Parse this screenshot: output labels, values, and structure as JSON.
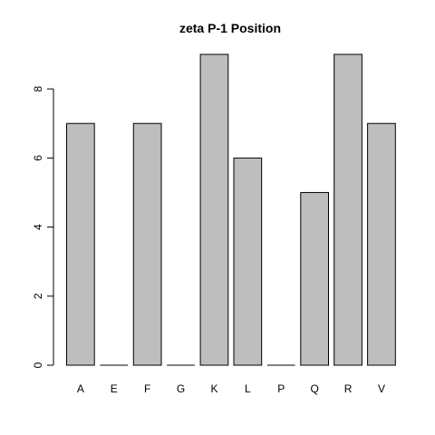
{
  "chart_data": {
    "type": "bar",
    "title": "zeta P-1 Position",
    "xlabel": "",
    "ylabel": "",
    "categories": [
      "A",
      "E",
      "F",
      "G",
      "K",
      "L",
      "P",
      "Q",
      "R",
      "V"
    ],
    "values": [
      7,
      0,
      7,
      0,
      9,
      6,
      0,
      5,
      9,
      7
    ],
    "ylim": [
      0,
      9
    ],
    "yticks": [
      0,
      2,
      4,
      6,
      8
    ],
    "grid": false,
    "legend": "none",
    "colors": {
      "bar_fill": "#bebebe",
      "bar_stroke": "#000000"
    }
  }
}
